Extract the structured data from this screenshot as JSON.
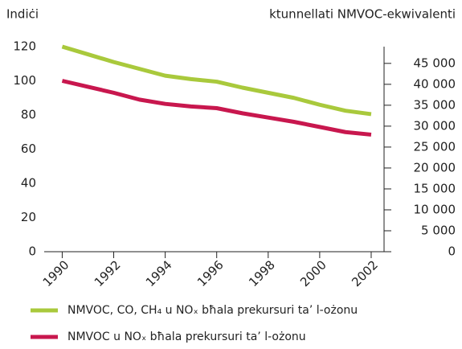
{
  "chart_data": {
    "type": "line",
    "y_label": "Indiċi",
    "y2_label": "ktunnellati NMVOC-ekwivalenti",
    "x": [
      1990,
      1991,
      1992,
      1993,
      1994,
      1995,
      1996,
      1997,
      1998,
      1999,
      2000,
      2001,
      2002
    ],
    "xlim": [
      1989.3,
      2002.5
    ],
    "xticks": [
      1990,
      1992,
      1994,
      1996,
      1998,
      2000,
      2002
    ],
    "ylim": [
      0,
      120
    ],
    "yticks": [
      0,
      20,
      40,
      60,
      80,
      100,
      120
    ],
    "y2lim": [
      0,
      49000
    ],
    "y2ticks": [
      0,
      {
        "value": 5000,
        "label": "5 000"
      },
      {
        "value": 10000,
        "label": "10 000"
      },
      {
        "value": 15000,
        "label": "15 000"
      },
      {
        "value": 20000,
        "label": "20 000"
      },
      {
        "value": 25000,
        "label": "25 000"
      },
      {
        "value": 30000,
        "label": "30 000"
      },
      {
        "value": 35000,
        "label": "35 000"
      },
      {
        "value": 40000,
        "label": "40 000"
      },
      {
        "value": 45000,
        "label": "45 000"
      }
    ],
    "series": [
      {
        "name": "NMVOC, CO, CH₄ u NOₓ bħala prekursuri ta’ l-ożonu",
        "color": "#a9c93c",
        "values": [
          120,
          115.5,
          111,
          107,
          103,
          101,
          99.5,
          96,
          93,
          90,
          86,
          82.5,
          80.5
        ]
      },
      {
        "name": "NMVOC u NOₓ bħala prekursuri ta’ l-ożonu",
        "color": "#c8174e",
        "values": [
          100,
          96.5,
          93,
          89,
          86.5,
          85,
          84,
          81,
          78.5,
          76,
          73,
          70,
          68.5
        ]
      }
    ]
  }
}
